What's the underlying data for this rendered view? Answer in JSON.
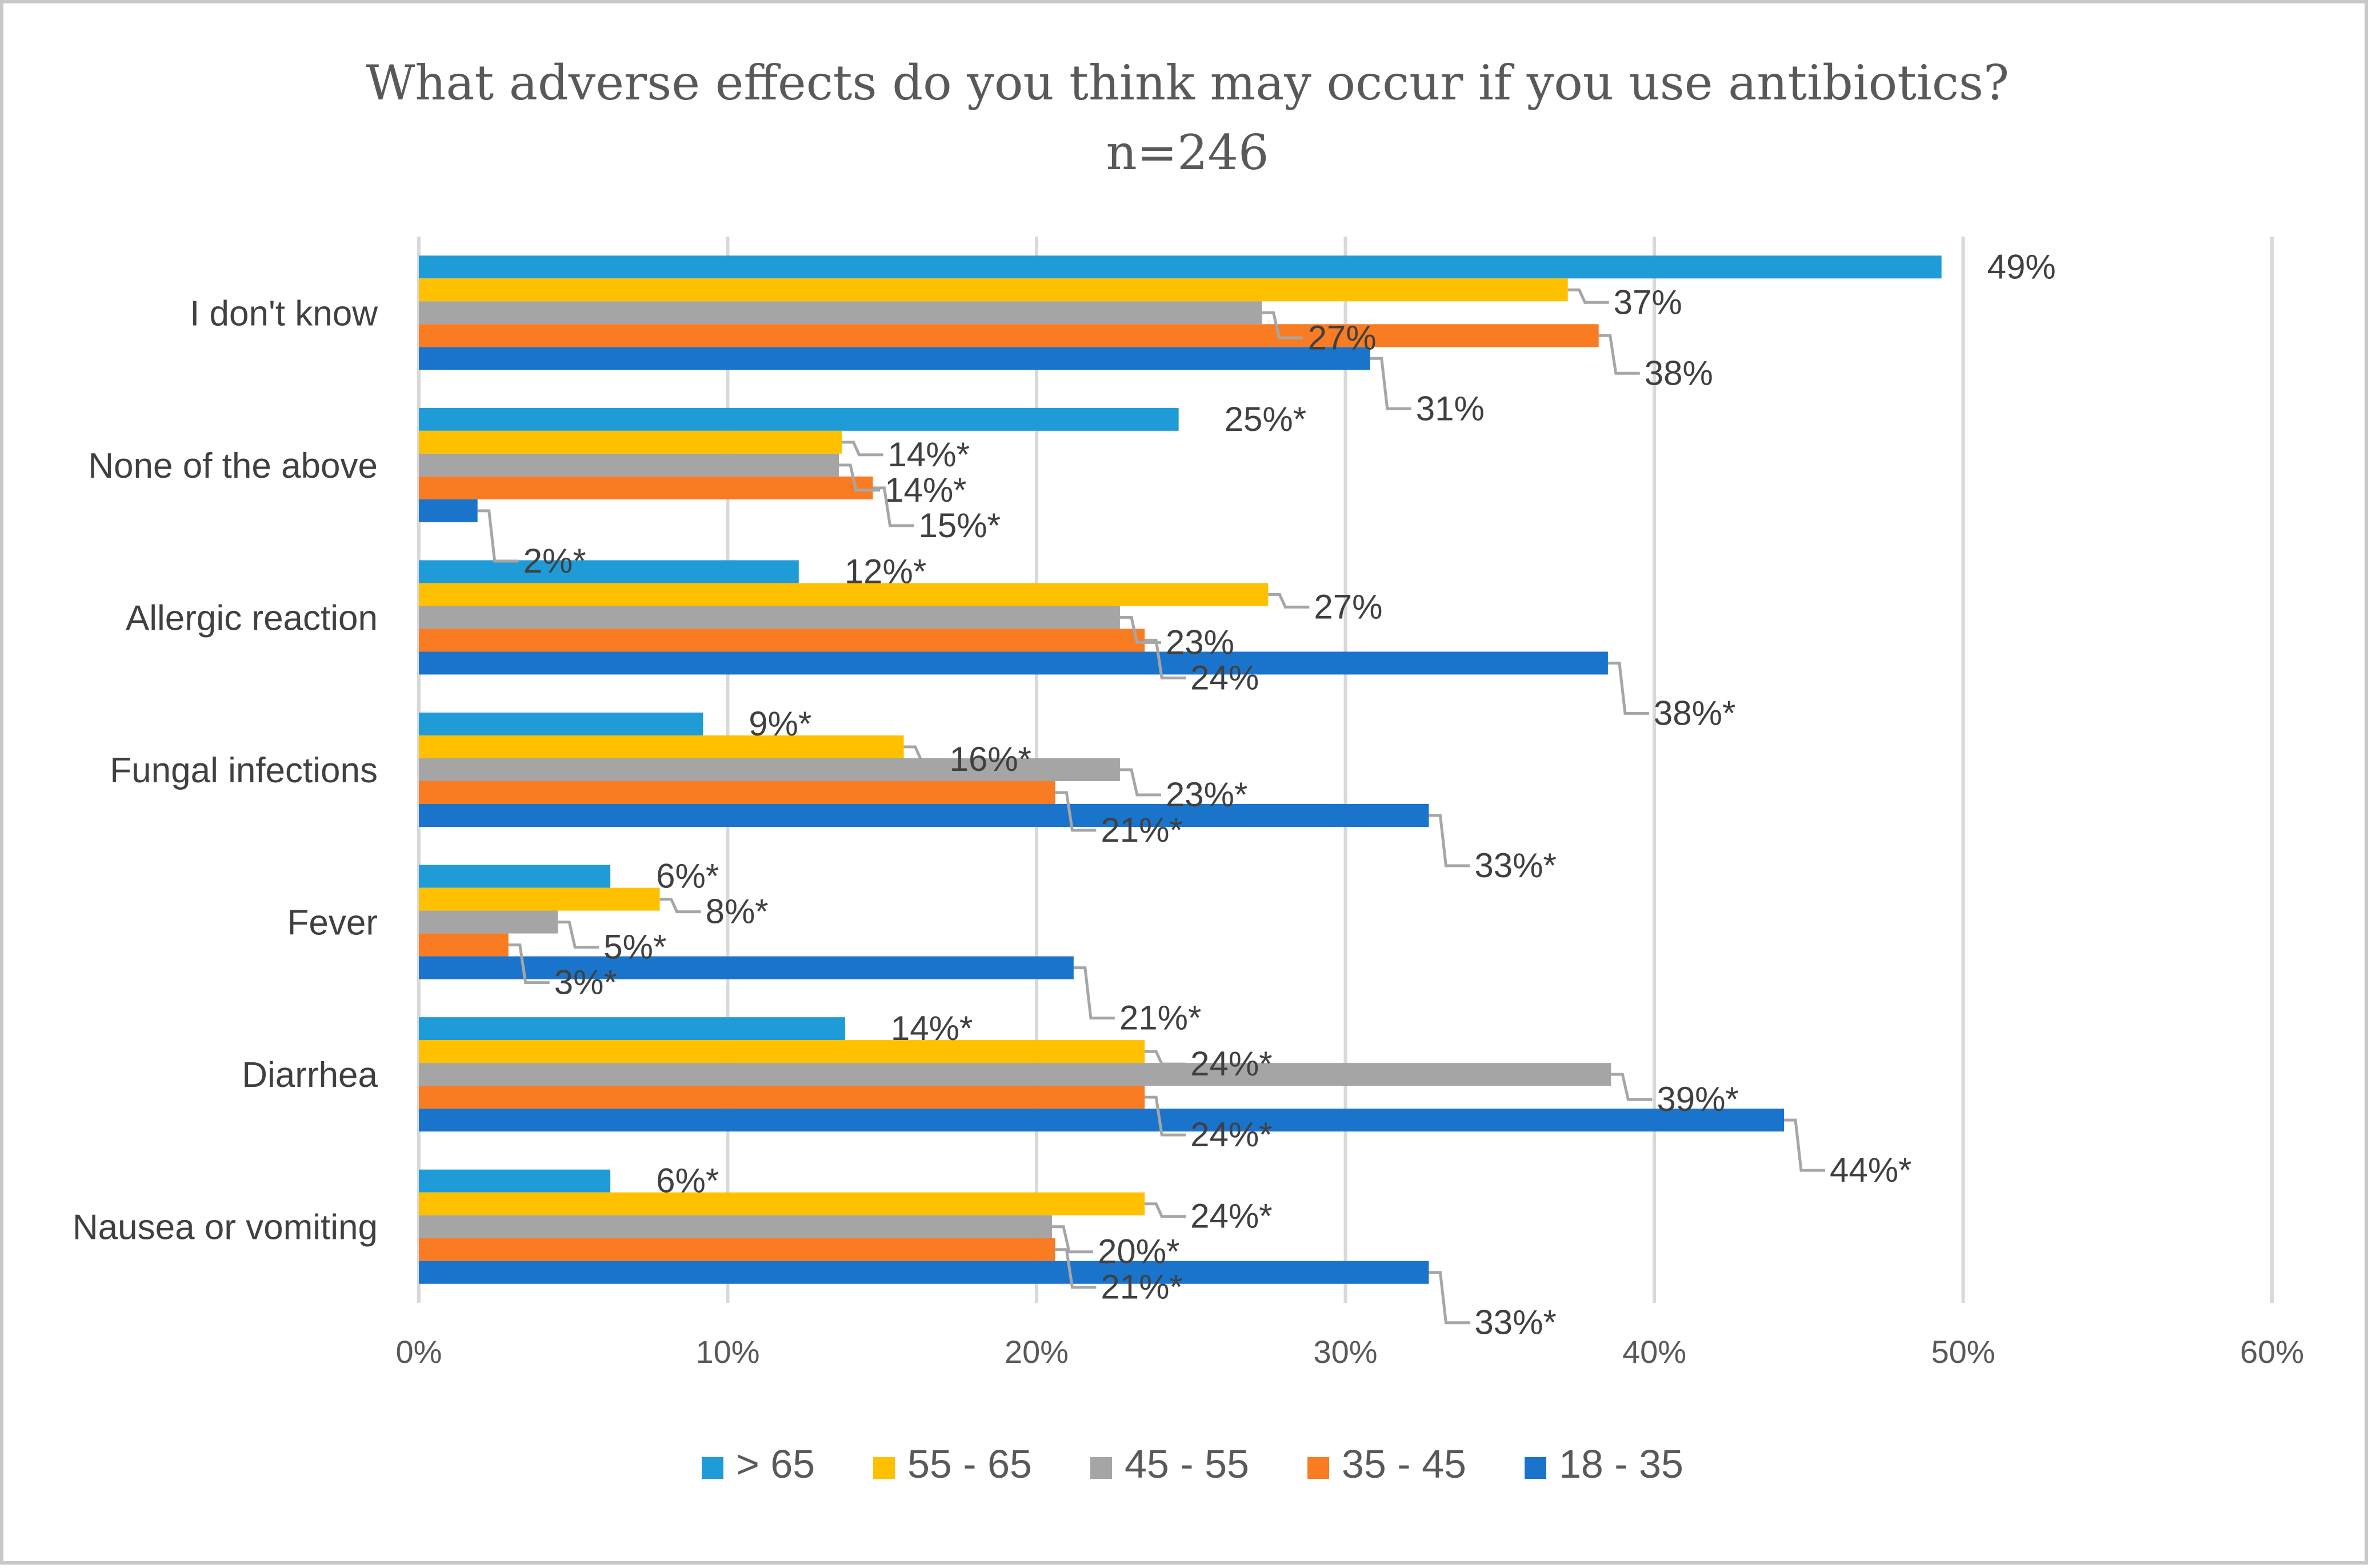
{
  "chart_data": {
    "type": "bar",
    "orientation": "horizontal",
    "title": "What adverse effects do you think may occur if you use antibiotics?",
    "subtitle": "n=246",
    "categories": [
      "I don't know",
      "None of the above",
      "Allergic reaction",
      "Fungal infections",
      "Fever",
      "Diarrhea",
      "Nausea or vomiting"
    ],
    "series": [
      {
        "name": "> 65",
        "color": "#1f9bd7",
        "values": [
          49.3,
          24.6,
          12.3,
          9.2,
          6.2,
          13.8,
          6.2
        ],
        "labels": [
          "49%",
          "25%*",
          "12%*",
          "9%*",
          "6%*",
          "14%*",
          "6%*"
        ]
      },
      {
        "name": "55 - 65",
        "color": "#ffc000",
        "values": [
          37.2,
          13.7,
          27.5,
          15.7,
          7.8,
          23.5,
          23.5
        ],
        "labels": [
          "37%",
          "14%*",
          "27%",
          "16%*",
          "8%*",
          "24%*",
          "24%*"
        ]
      },
      {
        "name": "45 - 55",
        "color": "#a5a5a5",
        "values": [
          27.3,
          13.6,
          22.7,
          22.7,
          4.5,
          38.6,
          20.5
        ],
        "labels": [
          "27%",
          "14%*",
          "23%",
          "23%*",
          "5%*",
          "39%*",
          "20%*"
        ]
      },
      {
        "name": "35 - 45",
        "color": "#f97b22",
        "values": [
          38.2,
          14.7,
          23.5,
          20.6,
          2.9,
          23.5,
          20.6
        ],
        "labels": [
          "38%",
          "15%*",
          "24%",
          "21%*",
          "3%*",
          "24%*",
          "21%*"
        ]
      },
      {
        "name": "18 - 35",
        "color": "#1b74cc",
        "values": [
          30.8,
          1.9,
          38.5,
          32.7,
          21.2,
          44.2,
          32.7
        ],
        "labels": [
          "31%",
          "2%*",
          "38%*",
          "33%*",
          "21%*",
          "44%*",
          "33%*"
        ]
      }
    ],
    "xlim": [
      0,
      60
    ],
    "xticks": [
      0,
      10,
      20,
      30,
      40,
      50,
      60
    ],
    "xtick_labels": [
      "0%",
      "10%",
      "20%",
      "30%",
      "40%",
      "50%",
      "60%"
    ],
    "grid": true,
    "legend_position": "bottom"
  }
}
